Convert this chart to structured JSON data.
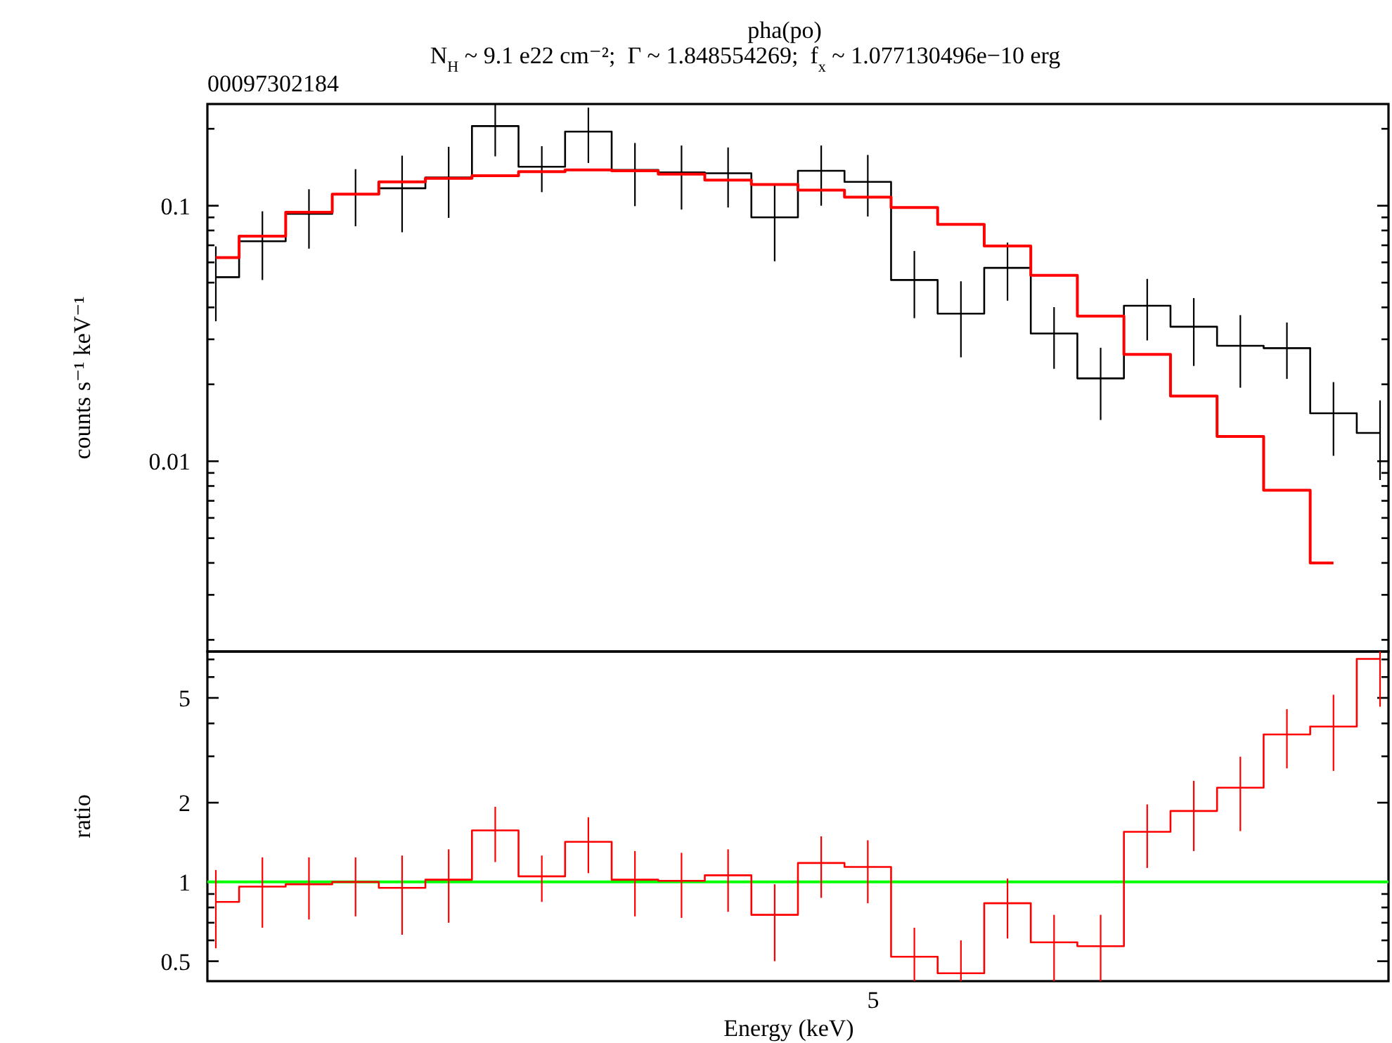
{
  "chart_data": [
    {
      "type": "step",
      "title": "pha(po)",
      "subtitle": "N$_{H}$ ~ 9.1 e22 cm⁻²;  Γ ~ 1.848554269;  f$_{x}$ ~ 1.077130496e−10 erg",
      "annotations": [
        "00097302184"
      ],
      "ylabel": "counts s⁻¹ keV⁻¹",
      "log": "y",
      "categories": [
        null,
        null,
        null,
        null,
        null,
        null,
        null,
        null,
        null,
        null,
        null,
        null,
        null,
        null,
        null,
        null,
        null,
        null,
        null,
        null,
        null,
        null,
        null,
        null,
        null,
        null
      ],
      "ylim": [
        0.0018,
        0.25
      ],
      "yticks": [
        {
          "value": 0.002,
          "label": null
        },
        {
          "value": 0.003,
          "label": null
        },
        {
          "value": 0.004,
          "label": null
        },
        {
          "value": 0.005,
          "label": null
        },
        {
          "value": 0.006,
          "label": null
        },
        {
          "value": 0.007,
          "label": null
        },
        {
          "value": 0.008,
          "label": null
        },
        {
          "value": 0.009,
          "label": null
        },
        0.01,
        {
          "value": 0.02,
          "label": null
        },
        {
          "value": 0.03,
          "label": null
        },
        {
          "value": 0.04,
          "label": null
        },
        {
          "value": 0.05,
          "label": null
        },
        {
          "value": 0.06,
          "label": null
        },
        {
          "value": 0.07,
          "label": null
        },
        {
          "value": 0.08,
          "label": null
        },
        {
          "value": 0.09,
          "label": null
        },
        0.1,
        {
          "value": 0.2,
          "label": null
        }
      ],
      "series": [
        {
          "color": "#000000",
          "values": [
            0.0525,
            0.0726,
            0.093,
            0.111,
            0.117,
            0.129,
            0.205,
            0.142,
            0.195,
            0.138,
            0.135,
            0.134,
            0.09,
            0.137,
            0.124,
            0.0512,
            0.0378,
            0.0571,
            0.0316,
            0.0211,
            0.0406,
            0.0336,
            0.0283,
            0.0277,
            0.0154,
            0.0129
          ],
          "errors": [
            [
              0.0353,
              0.0693
            ],
            [
              0.0512,
              0.0951
            ],
            [
              0.0679,
              0.116
            ],
            [
              0.0831,
              0.139
            ],
            [
              0.0787,
              0.157
            ],
            [
              0.0896,
              0.17
            ],
            [
              0.156,
              0.25
            ],
            [
              0.113,
              0.171
            ],
            [
              0.147,
              0.242
            ],
            [
              0.0996,
              0.176
            ],
            [
              0.0966,
              0.172
            ],
            [
              0.0984,
              0.169
            ],
            [
              0.0606,
              0.12
            ],
            [
              0.1,
              0.172
            ],
            [
              0.0907,
              0.158
            ],
            [
              0.0363,
              0.0665
            ],
            [
              0.0255,
              0.0506
            ],
            [
              0.0425,
              0.0717
            ],
            [
              0.023,
              0.0401
            ],
            [
              0.0145,
              0.0278
            ],
            [
              0.0297,
              0.0517
            ],
            [
              0.0236,
              0.0435
            ],
            [
              0.0194,
              0.0373
            ],
            [
              0.021,
              0.0349
            ],
            [
              0.0105,
              0.0204
            ],
            [
              0.00844,
              0.0173
            ]
          ]
        },
        {
          "color": "#ff0000",
          "values": [
            0.0627,
            0.076,
            0.0942,
            0.111,
            0.124,
            0.128,
            0.131,
            0.136,
            0.138,
            0.137,
            0.133,
            0.126,
            0.121,
            0.115,
            0.108,
            0.0984,
            0.0845,
            0.0696,
            0.0534,
            0.037,
            0.0262,
            0.018,
            0.0125,
            0.0077,
            0.004,
            null
          ]
        }
      ]
    },
    {
      "type": "step",
      "xlabel": "Energy (keV)",
      "ylabel": "ratio",
      "log": "y",
      "annotations": [
        "5"
      ],
      "categories": [
        null,
        null,
        null,
        null,
        null,
        null,
        null,
        null,
        null,
        null,
        null,
        null,
        null,
        null,
        null,
        null,
        null,
        null,
        null,
        null,
        null,
        null,
        null,
        null,
        null,
        null
      ],
      "ylim": [
        0.42,
        7.5
      ],
      "yticks": [
        0.5,
        {
          "value": 0.6,
          "label": null
        },
        {
          "value": 0.7,
          "label": null
        },
        {
          "value": 0.8,
          "label": null
        },
        {
          "value": 0.9,
          "label": null
        },
        1,
        2,
        {
          "value": 3,
          "label": null
        },
        {
          "value": 4,
          "label": null
        },
        5,
        {
          "value": 6,
          "label": null
        },
        {
          "value": 7,
          "label": null
        }
      ],
      "ref_lines": [
        {
          "axis": "y",
          "value": 1,
          "color": "#00ff00"
        }
      ],
      "series": [
        {
          "color": "#ff0000",
          "values": [
            0.84,
            0.96,
            0.98,
            1.0,
            0.95,
            1.02,
            1.57,
            1.05,
            1.42,
            1.02,
            1.01,
            1.06,
            0.75,
            1.18,
            1.14,
            0.52,
            0.45,
            0.83,
            0.59,
            0.57,
            1.55,
            1.86,
            2.28,
            3.63,
            3.89,
            7.03
          ],
          "errors": [
            [
              0.56,
              1.11
            ],
            [
              0.67,
              1.24
            ],
            [
              0.72,
              1.24
            ],
            [
              0.74,
              1.24
            ],
            [
              0.63,
              1.26
            ],
            [
              0.7,
              1.33
            ],
            [
              1.19,
              1.93
            ],
            [
              0.84,
              1.26
            ],
            [
              1.08,
              1.76
            ],
            [
              0.74,
              1.31
            ],
            [
              0.73,
              1.29
            ],
            [
              0.77,
              1.33
            ],
            [
              0.5,
              0.98
            ],
            [
              0.87,
              1.49
            ],
            [
              0.83,
              1.44
            ],
            [
              0.42,
              0.67
            ],
            [
              0.42,
              0.6
            ],
            [
              0.61,
              1.03
            ],
            [
              0.42,
              0.75
            ],
            [
              0.42,
              0.75
            ],
            [
              1.13,
              1.97
            ],
            [
              1.31,
              2.42
            ],
            [
              1.56,
              2.99
            ],
            [
              2.7,
              4.53
            ],
            [
              2.64,
              5.14
            ],
            [
              4.63,
              7.5
            ]
          ]
        }
      ]
    }
  ]
}
